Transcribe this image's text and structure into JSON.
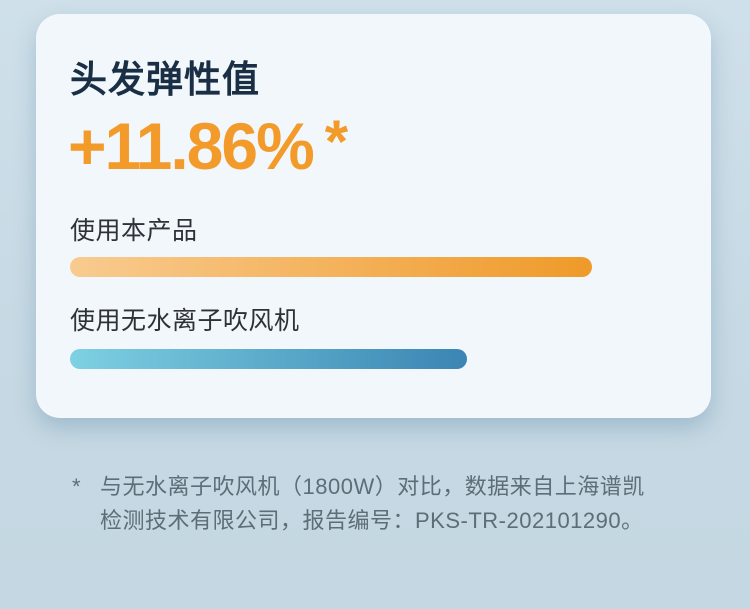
{
  "page": {
    "background_top": "#cfe0ea",
    "background_bottom": "#c4d7e2"
  },
  "card": {
    "background": "#f2f7fb",
    "title": "头发弹性值",
    "title_color": "#1a2f45",
    "metric": {
      "value": "+11.86%",
      "asterisk": "*",
      "color": "#f39b2a"
    },
    "bars": [
      {
        "label": "使用本产品",
        "width_pct": 100,
        "color_start": "#f9cb90",
        "color_end": "#ef9a29"
      },
      {
        "label": "使用无水离子吹风机",
        "width_pct": 76,
        "color_start": "#7ed0e2",
        "color_end": "#3a85b3"
      }
    ]
  },
  "footnote": {
    "marker": "*",
    "line1": "与无水离子吹风机（1800W）对比，数据来自上海谱凯",
    "line2": "检测技术有限公司，报告编号：PKS-TR-202101290。",
    "color": "#5e6d77"
  },
  "chart_data": {
    "type": "bar",
    "orientation": "horizontal",
    "title": "头发弹性值",
    "annotation": "+11.86% *",
    "categories": [
      "使用本产品",
      "使用无水离子吹风机"
    ],
    "values": [
      100,
      76
    ],
    "value_note": "relative bar lengths in %, no numeric axis shown in image",
    "grid": false,
    "legend_position": "none",
    "bar_colors": [
      {
        "start": "#f9cb90",
        "end": "#ef9a29"
      },
      {
        "start": "#7ed0e2",
        "end": "#3a85b3"
      }
    ]
  }
}
